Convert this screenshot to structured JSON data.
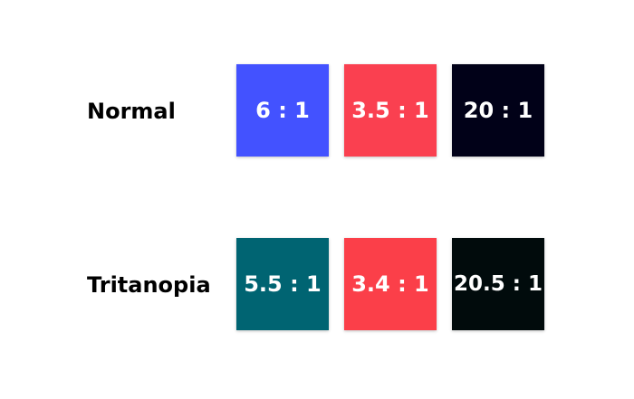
{
  "rows": [
    {
      "label": "Normal",
      "swatches": [
        {
          "ratio": "6 : 1",
          "color": "#4352ff"
        },
        {
          "ratio": "3.5 : 1",
          "color": "#fa4050"
        },
        {
          "ratio": "20 : 1",
          "color": "#010118"
        }
      ]
    },
    {
      "label": "Tritanopia",
      "swatches": [
        {
          "ratio": "5.5 : 1",
          "color": "#006472"
        },
        {
          "ratio": "3.4 : 1",
          "color": "#fb3f49"
        },
        {
          "ratio": "20.5 : 1",
          "color": "#010b0c"
        }
      ]
    }
  ]
}
